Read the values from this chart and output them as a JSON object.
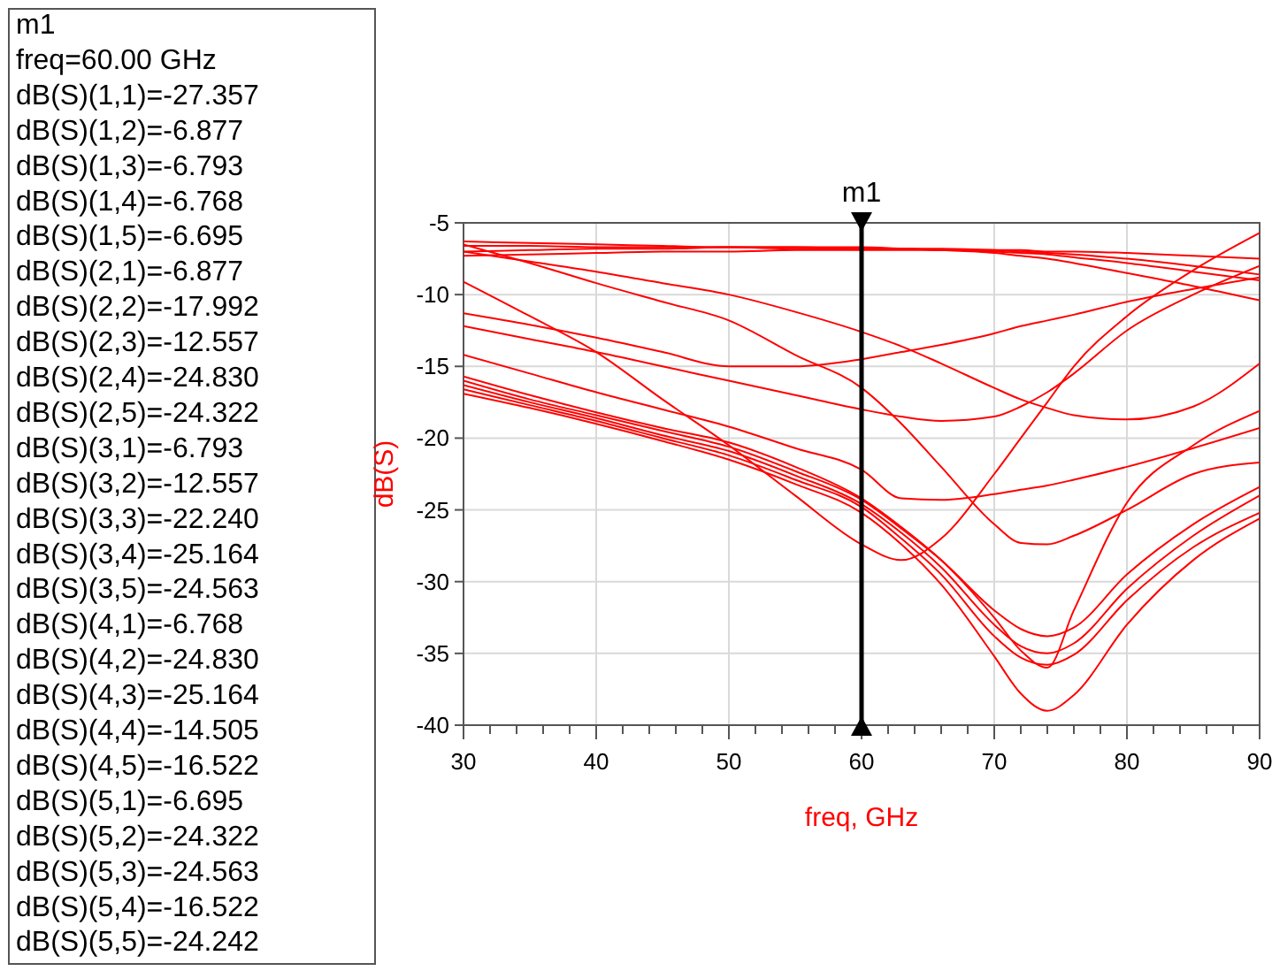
{
  "chart_data": {
    "type": "line",
    "xlabel": "freq, GHz",
    "ylabel": "dB(S)",
    "x": [
      30,
      35,
      40,
      45,
      50,
      55,
      60,
      63,
      66,
      70,
      72,
      74,
      76,
      80,
      85,
      90
    ],
    "xlim": [
      30,
      90
    ],
    "ylim": [
      -40,
      -5
    ],
    "xticks": [
      30,
      {
        "value": 32,
        "label": null
      },
      {
        "value": 34,
        "label": null
      },
      {
        "value": 36,
        "label": null
      },
      {
        "value": 38,
        "label": null
      },
      40,
      {
        "value": 42,
        "label": null
      },
      {
        "value": 44,
        "label": null
      },
      {
        "value": 46,
        "label": null
      },
      {
        "value": 48,
        "label": null
      },
      50,
      {
        "value": 52,
        "label": null
      },
      {
        "value": 54,
        "label": null
      },
      {
        "value": 56,
        "label": null
      },
      {
        "value": 58,
        "label": null
      },
      60,
      {
        "value": 62,
        "label": null
      },
      {
        "value": 64,
        "label": null
      },
      {
        "value": 66,
        "label": null
      },
      {
        "value": 68,
        "label": null
      },
      70,
      {
        "value": 72,
        "label": null
      },
      {
        "value": 74,
        "label": null
      },
      {
        "value": 76,
        "label": null
      },
      {
        "value": 78,
        "label": null
      },
      80,
      {
        "value": 82,
        "label": null
      },
      {
        "value": 84,
        "label": null
      },
      {
        "value": 86,
        "label": null
      },
      {
        "value": 88,
        "label": null
      },
      90
    ],
    "yticks": [
      -40,
      -35,
      -30,
      -25,
      -20,
      -15,
      -10,
      -5
    ],
    "grid": true,
    "marker": "none",
    "line_style": "solid",
    "ref_lines": [
      {
        "axis": "x",
        "value": 60,
        "label": "m1",
        "color": "#000000"
      }
    ],
    "series": [
      {
        "color": "#ff0000",
        "values": [
          -9.1,
          -11.5,
          -14.0,
          -17.3,
          -20.5,
          -24.0,
          -27.4,
          -28.5,
          -27.0,
          -22.5,
          -20.0,
          -17.5,
          -15.0,
          -11.5,
          -8.3,
          -5.7
        ]
      },
      {
        "color": "#ff0000",
        "values": [
          -7.3,
          -7.2,
          -7.1,
          -7.0,
          -7.0,
          -6.9,
          -6.9,
          -6.9,
          -6.9,
          -6.9,
          -6.9,
          -7.0,
          -7.0,
          -7.1,
          -7.3,
          -7.5
        ]
      },
      {
        "color": "#ff0000",
        "values": [
          -6.3,
          -6.4,
          -6.5,
          -6.6,
          -6.7,
          -6.7,
          -6.8,
          -6.8,
          -6.9,
          -7.0,
          -7.1,
          -7.2,
          -7.4,
          -7.8,
          -8.4,
          -9.0
        ]
      },
      {
        "color": "#ff0000",
        "values": [
          -6.6,
          -6.6,
          -6.7,
          -6.7,
          -6.7,
          -6.8,
          -6.8,
          -6.8,
          -6.8,
          -6.9,
          -7.0,
          -7.1,
          -7.2,
          -7.5,
          -8.0,
          -8.6
        ]
      },
      {
        "color": "#ff0000",
        "values": [
          -7.0,
          -6.9,
          -6.8,
          -6.8,
          -6.7,
          -6.7,
          -6.7,
          -6.8,
          -6.9,
          -7.1,
          -7.3,
          -7.5,
          -7.8,
          -8.5,
          -9.4,
          -10.4
        ]
      },
      {
        "color": "#ff0000",
        "values": [
          -7.0,
          -7.7,
          -8.4,
          -9.2,
          -10.0,
          -11.2,
          -12.6,
          -13.6,
          -14.8,
          -16.5,
          -17.3,
          -17.9,
          -18.4,
          -18.7,
          -17.8,
          -14.8
        ]
      },
      {
        "color": "#ff0000",
        "values": [
          -11.3,
          -12.1,
          -13.0,
          -14.0,
          -15.0,
          -15.0,
          -14.5,
          -14.0,
          -13.5,
          -12.7,
          -12.2,
          -11.8,
          -11.4,
          -10.5,
          -9.6,
          -8.8
        ]
      },
      {
        "color": "#ff0000",
        "values": [
          -6.5,
          -7.8,
          -9.2,
          -10.5,
          -11.8,
          -14.2,
          -16.5,
          -19.0,
          -22.0,
          -26.0,
          -27.3,
          -27.4,
          -26.8,
          -25.0,
          -22.5,
          -21.7
        ]
      },
      {
        "color": "#ff0000",
        "values": [
          -12.2,
          -13.1,
          -14.0,
          -15.0,
          -16.0,
          -17.0,
          -18.0,
          -18.5,
          -18.8,
          -18.5,
          -17.8,
          -16.8,
          -15.5,
          -12.5,
          -10.0,
          -8.0
        ]
      },
      {
        "color": "#ff0000",
        "values": [
          -14.2,
          -15.5,
          -16.8,
          -18.0,
          -19.2,
          -20.7,
          -22.2,
          -24.2,
          -24.3,
          -23.9,
          -23.6,
          -23.3,
          -22.9,
          -22.0,
          -20.7,
          -19.3
        ]
      },
      {
        "color": "#ff0000",
        "values": [
          -15.7,
          -17.0,
          -18.2,
          -19.3,
          -20.3,
          -22.0,
          -24.2,
          -26.2,
          -28.5,
          -32.5,
          -34.8,
          -36.0,
          -32.0,
          -24.5,
          -20.5,
          -18.1
        ]
      },
      {
        "color": "#ff0000",
        "values": [
          -16.0,
          -17.3,
          -18.4,
          -19.5,
          -20.6,
          -22.3,
          -24.3,
          -26.3,
          -28.5,
          -32.0,
          -33.3,
          -33.8,
          -33.2,
          -29.5,
          -26.0,
          -23.4
        ]
      },
      {
        "color": "#ff0000",
        "values": [
          -16.3,
          -17.5,
          -18.6,
          -19.8,
          -20.9,
          -22.6,
          -24.6,
          -26.6,
          -29.0,
          -33.0,
          -34.5,
          -35.0,
          -34.3,
          -30.5,
          -26.8,
          -24.0
        ]
      },
      {
        "color": "#ff0000",
        "values": [
          -16.6,
          -17.7,
          -18.8,
          -20.0,
          -21.2,
          -22.9,
          -24.8,
          -27.0,
          -29.5,
          -33.8,
          -35.3,
          -35.8,
          -35.1,
          -31.3,
          -27.6,
          -25.2
        ]
      },
      {
        "color": "#ff0000",
        "values": [
          -16.9,
          -17.9,
          -19.0,
          -20.2,
          -21.5,
          -23.2,
          -25.2,
          -27.4,
          -30.2,
          -35.2,
          -37.8,
          -39.0,
          -37.9,
          -33.0,
          -28.5,
          -25.6
        ]
      }
    ],
    "annotations": [
      "m1",
      "freq=60.00 GHz",
      "dB(S)(1,1)=-27.357",
      "dB(S)(1,2)=-6.877",
      "dB(S)(1,3)=-6.793",
      "dB(S)(1,4)=-6.768",
      "dB(S)(1,5)=-6.695",
      "dB(S)(2,1)=-6.877",
      "dB(S)(2,2)=-17.992",
      "dB(S)(2,3)=-12.557",
      "dB(S)(2,4)=-24.830",
      "dB(S)(2,5)=-24.322",
      "dB(S)(3,1)=-6.793",
      "dB(S)(3,2)=-12.557",
      "dB(S)(3,3)=-22.240",
      "dB(S)(3,4)=-25.164",
      "dB(S)(3,5)=-24.563",
      "dB(S)(4,1)=-6.768",
      "dB(S)(4,2)=-24.830",
      "dB(S)(4,3)=-25.164",
      "dB(S)(4,4)=-14.505",
      "dB(S)(4,5)=-16.522",
      "dB(S)(5,1)=-6.695",
      "dB(S)(5,2)=-24.322",
      "dB(S)(5,3)=-24.563",
      "dB(S)(5,4)=-16.522",
      "dB(S)(5,5)=-24.242"
    ]
  }
}
